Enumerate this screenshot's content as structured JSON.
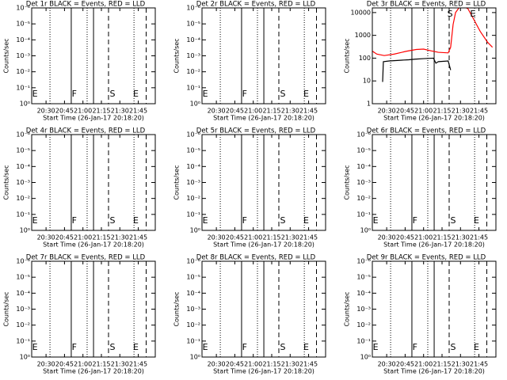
{
  "chart_data": [
    {
      "type": "line",
      "title": "Det 1r BLACK = Events, RED = LLD",
      "ylabel": "Counts/sec",
      "xlabel": "Start Time (26-Jan-17 20:18:20)",
      "xlim": [
        1218.33,
        1318.8
      ],
      "xticks": [
        {
          "value": 1230,
          "label": "20:30"
        },
        {
          "value": 1245,
          "label": "20:45"
        },
        {
          "value": 1260,
          "label": "21:00"
        },
        {
          "value": 1275,
          "label": "21:15"
        },
        {
          "value": 1290,
          "label": "21:30"
        },
        {
          "value": 1305,
          "label": "21:45"
        }
      ],
      "ylim": [
        0,
        6
      ],
      "log": false,
      "yticks": [
        {
          "value": 0,
          "label": "10⁰"
        },
        {
          "value": 1,
          "label": "10⁻¹"
        },
        {
          "value": 2,
          "label": "10⁻²"
        },
        {
          "value": 3,
          "label": "10⁻³"
        },
        {
          "value": 4,
          "label": "10⁻⁴"
        },
        {
          "value": 5,
          "label": "10⁻⁵"
        },
        {
          "value": 6,
          "label": "10⁻⁶"
        }
      ],
      "vlines": [
        {
          "x": 1233.2,
          "style": "dotted"
        },
        {
          "x": 1250.5,
          "style": "solid"
        },
        {
          "x": 1263.4,
          "style": "dotted"
        },
        {
          "x": 1268.6,
          "style": "solid"
        },
        {
          "x": 1280.8,
          "style": "dashed"
        },
        {
          "x": 1301.5,
          "style": "dotted"
        },
        {
          "x": 1311.4,
          "style": "dashed"
        }
      ],
      "annotation_row": "bottom",
      "annotations": [
        {
          "text": "E",
          "x": 1221
        },
        {
          "text": "F",
          "x": 1253
        },
        {
          "text": "S",
          "x": 1284
        },
        {
          "text": "E",
          "x": 1303
        }
      ],
      "series": []
    },
    {
      "type": "line",
      "title": "Det 2r BLACK = Events, RED = LLD",
      "ylabel": "Counts/sec",
      "xlabel": "Start Time (26-Jan-17 20:18:20)",
      "xlim": [
        1218.33,
        1318.8
      ],
      "xticks": [
        {
          "value": 1230,
          "label": "20:30"
        },
        {
          "value": 1245,
          "label": "20:45"
        },
        {
          "value": 1260,
          "label": "21:00"
        },
        {
          "value": 1275,
          "label": "21:15"
        },
        {
          "value": 1290,
          "label": "21:30"
        },
        {
          "value": 1305,
          "label": "21:45"
        }
      ],
      "ylim": [
        0,
        6
      ],
      "log": false,
      "yticks": [
        {
          "value": 0,
          "label": "10⁰"
        },
        {
          "value": 1,
          "label": "10⁻¹"
        },
        {
          "value": 2,
          "label": "10⁻²"
        },
        {
          "value": 3,
          "label": "10⁻³"
        },
        {
          "value": 4,
          "label": "10⁻⁴"
        },
        {
          "value": 5,
          "label": "10⁻⁵"
        },
        {
          "value": 6,
          "label": "10⁻⁶"
        }
      ],
      "vlines": [
        {
          "x": 1233.2,
          "style": "dotted"
        },
        {
          "x": 1250.5,
          "style": "solid"
        },
        {
          "x": 1263.4,
          "style": "dotted"
        },
        {
          "x": 1268.6,
          "style": "solid"
        },
        {
          "x": 1280.8,
          "style": "dashed"
        },
        {
          "x": 1301.5,
          "style": "dotted"
        },
        {
          "x": 1311.4,
          "style": "dashed"
        }
      ],
      "annotation_row": "bottom",
      "annotations": [
        {
          "text": "E",
          "x": 1221
        },
        {
          "text": "F",
          "x": 1253
        },
        {
          "text": "S",
          "x": 1284
        },
        {
          "text": "E",
          "x": 1303
        }
      ],
      "series": []
    },
    {
      "type": "line",
      "title": "Det 3r BLACK = Events, RED = LLD",
      "ylabel": "Counts/sec",
      "xlabel": "Start Time (26-Jan-17 20:18:20)",
      "xlim": [
        1218.33,
        1318.8
      ],
      "xticks": [
        {
          "value": 1230,
          "label": "20:30"
        },
        {
          "value": 1245,
          "label": "20:45"
        },
        {
          "value": 1260,
          "label": "21:00"
        },
        {
          "value": 1275,
          "label": "21:15"
        },
        {
          "value": 1290,
          "label": "21:30"
        },
        {
          "value": 1305,
          "label": "21:45"
        }
      ],
      "ylim": [
        1,
        16000
      ],
      "log": true,
      "yticks": [
        1,
        10,
        100,
        1000,
        10000
      ],
      "vlines": [
        {
          "x": 1233.2,
          "style": "dotted"
        },
        {
          "x": 1250.5,
          "style": "solid"
        },
        {
          "x": 1263.4,
          "style": "dotted"
        },
        {
          "x": 1268.6,
          "style": "solid"
        },
        {
          "x": 1280.8,
          "style": "dashed"
        },
        {
          "x": 1301.5,
          "style": "dotted"
        },
        {
          "x": 1311.4,
          "style": "dashed"
        }
      ],
      "annotation_row": "top",
      "annotations": [
        {
          "text": "S",
          "x": 1281.5
        },
        {
          "text": "E",
          "x": 1300
        }
      ],
      "series": [
        {
          "color": "#000000",
          "x": [
            1226.7,
            1227.3,
            1232,
            1240,
            1248,
            1253,
            1260,
            1268,
            1270,
            1272,
            1280,
            1282
          ],
          "values": [
            9,
            70,
            75,
            80,
            85,
            90,
            95,
            100,
            60,
            70,
            75,
            30
          ]
        },
        {
          "color": "#ff0000",
          "x": [
            1218.5,
            1222,
            1228,
            1236,
            1246,
            1254,
            1260,
            1266,
            1272,
            1280,
            1282,
            1284,
            1286,
            1290,
            1296,
            1300,
            1306,
            1312,
            1316
          ],
          "values": [
            200,
            150,
            130,
            150,
            200,
            240,
            250,
            210,
            180,
            170,
            300,
            3000,
            10000,
            20000,
            15000,
            6000,
            1500,
            500,
            300
          ]
        }
      ]
    },
    {
      "type": "line",
      "title": "Det 4r BLACK = Events, RED = LLD",
      "ylabel": "Counts/sec",
      "xlabel": "Start Time (26-Jan-17 20:18:20)",
      "xlim": [
        1218.33,
        1318.8
      ],
      "xticks": [
        {
          "value": 1230,
          "label": "20:30"
        },
        {
          "value": 1245,
          "label": "20:45"
        },
        {
          "value": 1260,
          "label": "21:00"
        },
        {
          "value": 1275,
          "label": "21:15"
        },
        {
          "value": 1290,
          "label": "21:30"
        },
        {
          "value": 1305,
          "label": "21:45"
        }
      ],
      "ylim": [
        0,
        6
      ],
      "log": false,
      "yticks": [
        {
          "value": 0,
          "label": "10⁰"
        },
        {
          "value": 1,
          "label": "10⁻¹"
        },
        {
          "value": 2,
          "label": "10⁻²"
        },
        {
          "value": 3,
          "label": "10⁻³"
        },
        {
          "value": 4,
          "label": "10⁻⁴"
        },
        {
          "value": 5,
          "label": "10⁻⁵"
        },
        {
          "value": 6,
          "label": "10⁻⁶"
        }
      ],
      "vlines": [
        {
          "x": 1233.2,
          "style": "dotted"
        },
        {
          "x": 1250.5,
          "style": "solid"
        },
        {
          "x": 1263.4,
          "style": "dotted"
        },
        {
          "x": 1268.6,
          "style": "solid"
        },
        {
          "x": 1280.8,
          "style": "dashed"
        },
        {
          "x": 1301.5,
          "style": "dotted"
        },
        {
          "x": 1311.4,
          "style": "dashed"
        }
      ],
      "annotation_row": "bottom",
      "annotations": [
        {
          "text": "E",
          "x": 1221
        },
        {
          "text": "F",
          "x": 1253
        },
        {
          "text": "S",
          "x": 1284
        },
        {
          "text": "E",
          "x": 1303
        }
      ],
      "series": []
    },
    {
      "type": "line",
      "title": "Det 5r BLACK = Events, RED = LLD",
      "ylabel": "Counts/sec",
      "xlabel": "Start Time (26-Jan-17 20:18:20)",
      "xlim": [
        1218.33,
        1318.8
      ],
      "xticks": [
        {
          "value": 1230,
          "label": "20:30"
        },
        {
          "value": 1245,
          "label": "20:45"
        },
        {
          "value": 1260,
          "label": "21:00"
        },
        {
          "value": 1275,
          "label": "21:15"
        },
        {
          "value": 1290,
          "label": "21:30"
        },
        {
          "value": 1305,
          "label": "21:45"
        }
      ],
      "ylim": [
        0,
        6
      ],
      "log": false,
      "yticks": [
        {
          "value": 0,
          "label": "10⁰"
        },
        {
          "value": 1,
          "label": "10⁻¹"
        },
        {
          "value": 2,
          "label": "10⁻²"
        },
        {
          "value": 3,
          "label": "10⁻³"
        },
        {
          "value": 4,
          "label": "10⁻⁴"
        },
        {
          "value": 5,
          "label": "10⁻⁵"
        },
        {
          "value": 6,
          "label": "10⁻⁶"
        }
      ],
      "vlines": [
        {
          "x": 1233.2,
          "style": "dotted"
        },
        {
          "x": 1250.5,
          "style": "solid"
        },
        {
          "x": 1263.4,
          "style": "dotted"
        },
        {
          "x": 1268.6,
          "style": "solid"
        },
        {
          "x": 1280.8,
          "style": "dashed"
        },
        {
          "x": 1301.5,
          "style": "dotted"
        },
        {
          "x": 1311.4,
          "style": "dashed"
        }
      ],
      "annotation_row": "bottom",
      "annotations": [
        {
          "text": "E",
          "x": 1221
        },
        {
          "text": "F",
          "x": 1253
        },
        {
          "text": "S",
          "x": 1284
        },
        {
          "text": "E",
          "x": 1303
        }
      ],
      "series": []
    },
    {
      "type": "line",
      "title": "Det 6r BLACK = Events, RED = LLD",
      "ylabel": "Counts/sec",
      "xlabel": "Start Time (26-Jan-17 20:18:20)",
      "xlim": [
        1218.33,
        1318.8
      ],
      "xticks": [
        {
          "value": 1230,
          "label": "20:30"
        },
        {
          "value": 1245,
          "label": "20:45"
        },
        {
          "value": 1260,
          "label": "21:00"
        },
        {
          "value": 1275,
          "label": "21:15"
        },
        {
          "value": 1290,
          "label": "21:30"
        },
        {
          "value": 1305,
          "label": "21:45"
        }
      ],
      "ylim": [
        0,
        6
      ],
      "log": false,
      "yticks": [
        {
          "value": 0,
          "label": "10⁰"
        },
        {
          "value": 1,
          "label": "10⁻¹"
        },
        {
          "value": 2,
          "label": "10⁻²"
        },
        {
          "value": 3,
          "label": "10⁻³"
        },
        {
          "value": 4,
          "label": "10⁻⁴"
        },
        {
          "value": 5,
          "label": "10⁻⁵"
        },
        {
          "value": 6,
          "label": "10⁻⁶"
        }
      ],
      "vlines": [
        {
          "x": 1233.2,
          "style": "dotted"
        },
        {
          "x": 1250.5,
          "style": "solid"
        },
        {
          "x": 1263.4,
          "style": "dotted"
        },
        {
          "x": 1268.6,
          "style": "solid"
        },
        {
          "x": 1280.8,
          "style": "dashed"
        },
        {
          "x": 1301.5,
          "style": "dotted"
        },
        {
          "x": 1311.4,
          "style": "dashed"
        }
      ],
      "annotation_row": "bottom",
      "annotations": [
        {
          "text": "E",
          "x": 1221
        },
        {
          "text": "F",
          "x": 1253
        },
        {
          "text": "S",
          "x": 1284
        },
        {
          "text": "E",
          "x": 1303
        }
      ],
      "series": []
    },
    {
      "type": "line",
      "title": "Det 7r BLACK = Events, RED = LLD",
      "ylabel": "Counts/sec",
      "xlabel": "Start Time (26-Jan-17 20:18:20)",
      "xlim": [
        1218.33,
        1318.8
      ],
      "xticks": [
        {
          "value": 1230,
          "label": "20:30"
        },
        {
          "value": 1245,
          "label": "20:45"
        },
        {
          "value": 1260,
          "label": "21:00"
        },
        {
          "value": 1275,
          "label": "21:15"
        },
        {
          "value": 1290,
          "label": "21:30"
        },
        {
          "value": 1305,
          "label": "21:45"
        }
      ],
      "ylim": [
        0,
        6
      ],
      "log": false,
      "yticks": [
        {
          "value": 0,
          "label": "10⁰"
        },
        {
          "value": 1,
          "label": "10⁻¹"
        },
        {
          "value": 2,
          "label": "10⁻²"
        },
        {
          "value": 3,
          "label": "10⁻³"
        },
        {
          "value": 4,
          "label": "10⁻⁴"
        },
        {
          "value": 5,
          "label": "10⁻⁵"
        },
        {
          "value": 6,
          "label": "10⁻⁶"
        }
      ],
      "vlines": [
        {
          "x": 1233.2,
          "style": "dotted"
        },
        {
          "x": 1250.5,
          "style": "solid"
        },
        {
          "x": 1263.4,
          "style": "dotted"
        },
        {
          "x": 1268.6,
          "style": "solid"
        },
        {
          "x": 1280.8,
          "style": "dashed"
        },
        {
          "x": 1301.5,
          "style": "dotted"
        },
        {
          "x": 1311.4,
          "style": "dashed"
        }
      ],
      "annotation_row": "bottom",
      "annotations": [
        {
          "text": "E",
          "x": 1221
        },
        {
          "text": "F",
          "x": 1253
        },
        {
          "text": "S",
          "x": 1284
        },
        {
          "text": "E",
          "x": 1303
        }
      ],
      "series": []
    },
    {
      "type": "line",
      "title": "Det 8r BLACK = Events, RED = LLD",
      "ylabel": "Counts/sec",
      "xlabel": "Start Time (26-Jan-17 20:18:20)",
      "xlim": [
        1218.33,
        1318.8
      ],
      "xticks": [
        {
          "value": 1230,
          "label": "20:30"
        },
        {
          "value": 1245,
          "label": "20:45"
        },
        {
          "value": 1260,
          "label": "21:00"
        },
        {
          "value": 1275,
          "label": "21:15"
        },
        {
          "value": 1290,
          "label": "21:30"
        },
        {
          "value": 1305,
          "label": "21:45"
        }
      ],
      "ylim": [
        0,
        6
      ],
      "log": false,
      "yticks": [
        {
          "value": 0,
          "label": "10⁰"
        },
        {
          "value": 1,
          "label": "10⁻¹"
        },
        {
          "value": 2,
          "label": "10⁻²"
        },
        {
          "value": 3,
          "label": "10⁻³"
        },
        {
          "value": 4,
          "label": "10⁻⁴"
        },
        {
          "value": 5,
          "label": "10⁻⁵"
        },
        {
          "value": 6,
          "label": "10⁻⁶"
        }
      ],
      "vlines": [
        {
          "x": 1233.2,
          "style": "dotted"
        },
        {
          "x": 1250.5,
          "style": "solid"
        },
        {
          "x": 1263.4,
          "style": "dotted"
        },
        {
          "x": 1268.6,
          "style": "solid"
        },
        {
          "x": 1280.8,
          "style": "dashed"
        },
        {
          "x": 1301.5,
          "style": "dotted"
        },
        {
          "x": 1311.4,
          "style": "dashed"
        }
      ],
      "annotation_row": "bottom",
      "annotations": [
        {
          "text": "E",
          "x": 1221
        },
        {
          "text": "F",
          "x": 1253
        },
        {
          "text": "S",
          "x": 1284
        },
        {
          "text": "E",
          "x": 1303
        }
      ],
      "series": []
    },
    {
      "type": "line",
      "title": "Det 9r BLACK = Events, RED = LLD",
      "ylabel": "Counts/sec",
      "xlabel": "Start Time (26-Jan-17 20:18:20)",
      "xlim": [
        1218.33,
        1318.8
      ],
      "xticks": [
        {
          "value": 1230,
          "label": "20:30"
        },
        {
          "value": 1245,
          "label": "20:45"
        },
        {
          "value": 1260,
          "label": "21:00"
        },
        {
          "value": 1275,
          "label": "21:15"
        },
        {
          "value": 1290,
          "label": "21:30"
        },
        {
          "value": 1305,
          "label": "21:45"
        }
      ],
      "ylim": [
        0,
        6
      ],
      "log": false,
      "yticks": [
        {
          "value": 0,
          "label": "10⁰"
        },
        {
          "value": 1,
          "label": "10⁻¹"
        },
        {
          "value": 2,
          "label": "10⁻²"
        },
        {
          "value": 3,
          "label": "10⁻³"
        },
        {
          "value": 4,
          "label": "10⁻⁴"
        },
        {
          "value": 5,
          "label": "10⁻⁵"
        },
        {
          "value": 6,
          "label": "10⁻⁶"
        }
      ],
      "vlines": [
        {
          "x": 1233.2,
          "style": "dotted"
        },
        {
          "x": 1250.5,
          "style": "solid"
        },
        {
          "x": 1263.4,
          "style": "dotted"
        },
        {
          "x": 1268.6,
          "style": "solid"
        },
        {
          "x": 1280.8,
          "style": "dashed"
        },
        {
          "x": 1301.5,
          "style": "dotted"
        },
        {
          "x": 1311.4,
          "style": "dashed"
        }
      ],
      "annotation_row": "bottom",
      "annotations": [
        {
          "text": "E",
          "x": 1221
        },
        {
          "text": "F",
          "x": 1253
        },
        {
          "text": "S",
          "x": 1284
        },
        {
          "text": "E",
          "x": 1303
        }
      ],
      "series": []
    }
  ]
}
